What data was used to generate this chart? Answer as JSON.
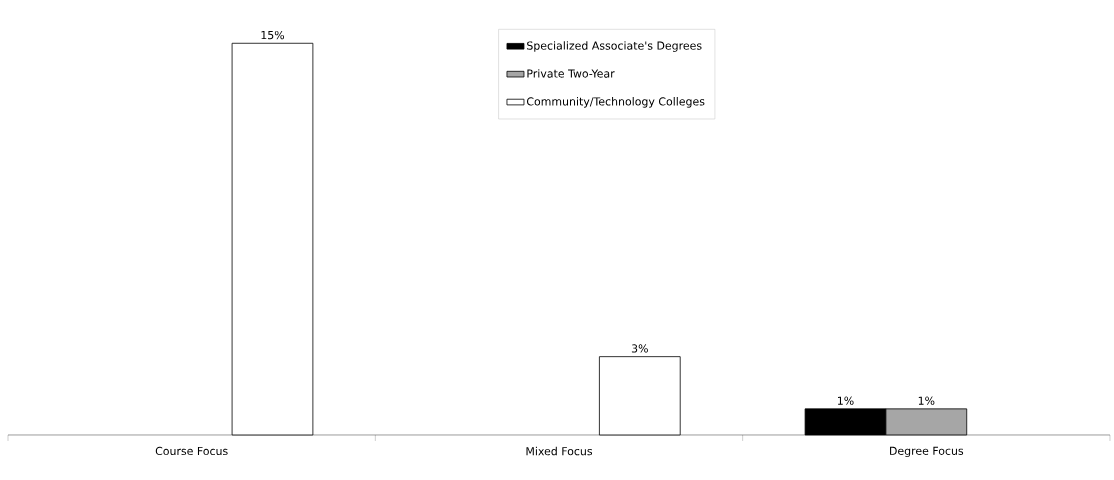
{
  "chart_data": {
    "type": "bar",
    "categories": [
      "Course Focus",
      "Mixed Focus",
      "Degree Focus"
    ],
    "series": [
      {
        "name": "Specialized Associate's Degrees",
        "color": "#000000",
        "values": [
          null,
          null,
          1
        ],
        "value_labels": [
          null,
          null,
          "1%"
        ]
      },
      {
        "name": "Private Two-Year",
        "color": "#a6a6a6",
        "values": [
          null,
          null,
          1
        ],
        "value_labels": [
          null,
          null,
          "1%"
        ]
      },
      {
        "name": "Community/Technology Colleges",
        "color": "#ffffff",
        "values": [
          15,
          3,
          null
        ],
        "value_labels": [
          "15%",
          "3%",
          null
        ]
      }
    ],
    "legend": "top"
  }
}
